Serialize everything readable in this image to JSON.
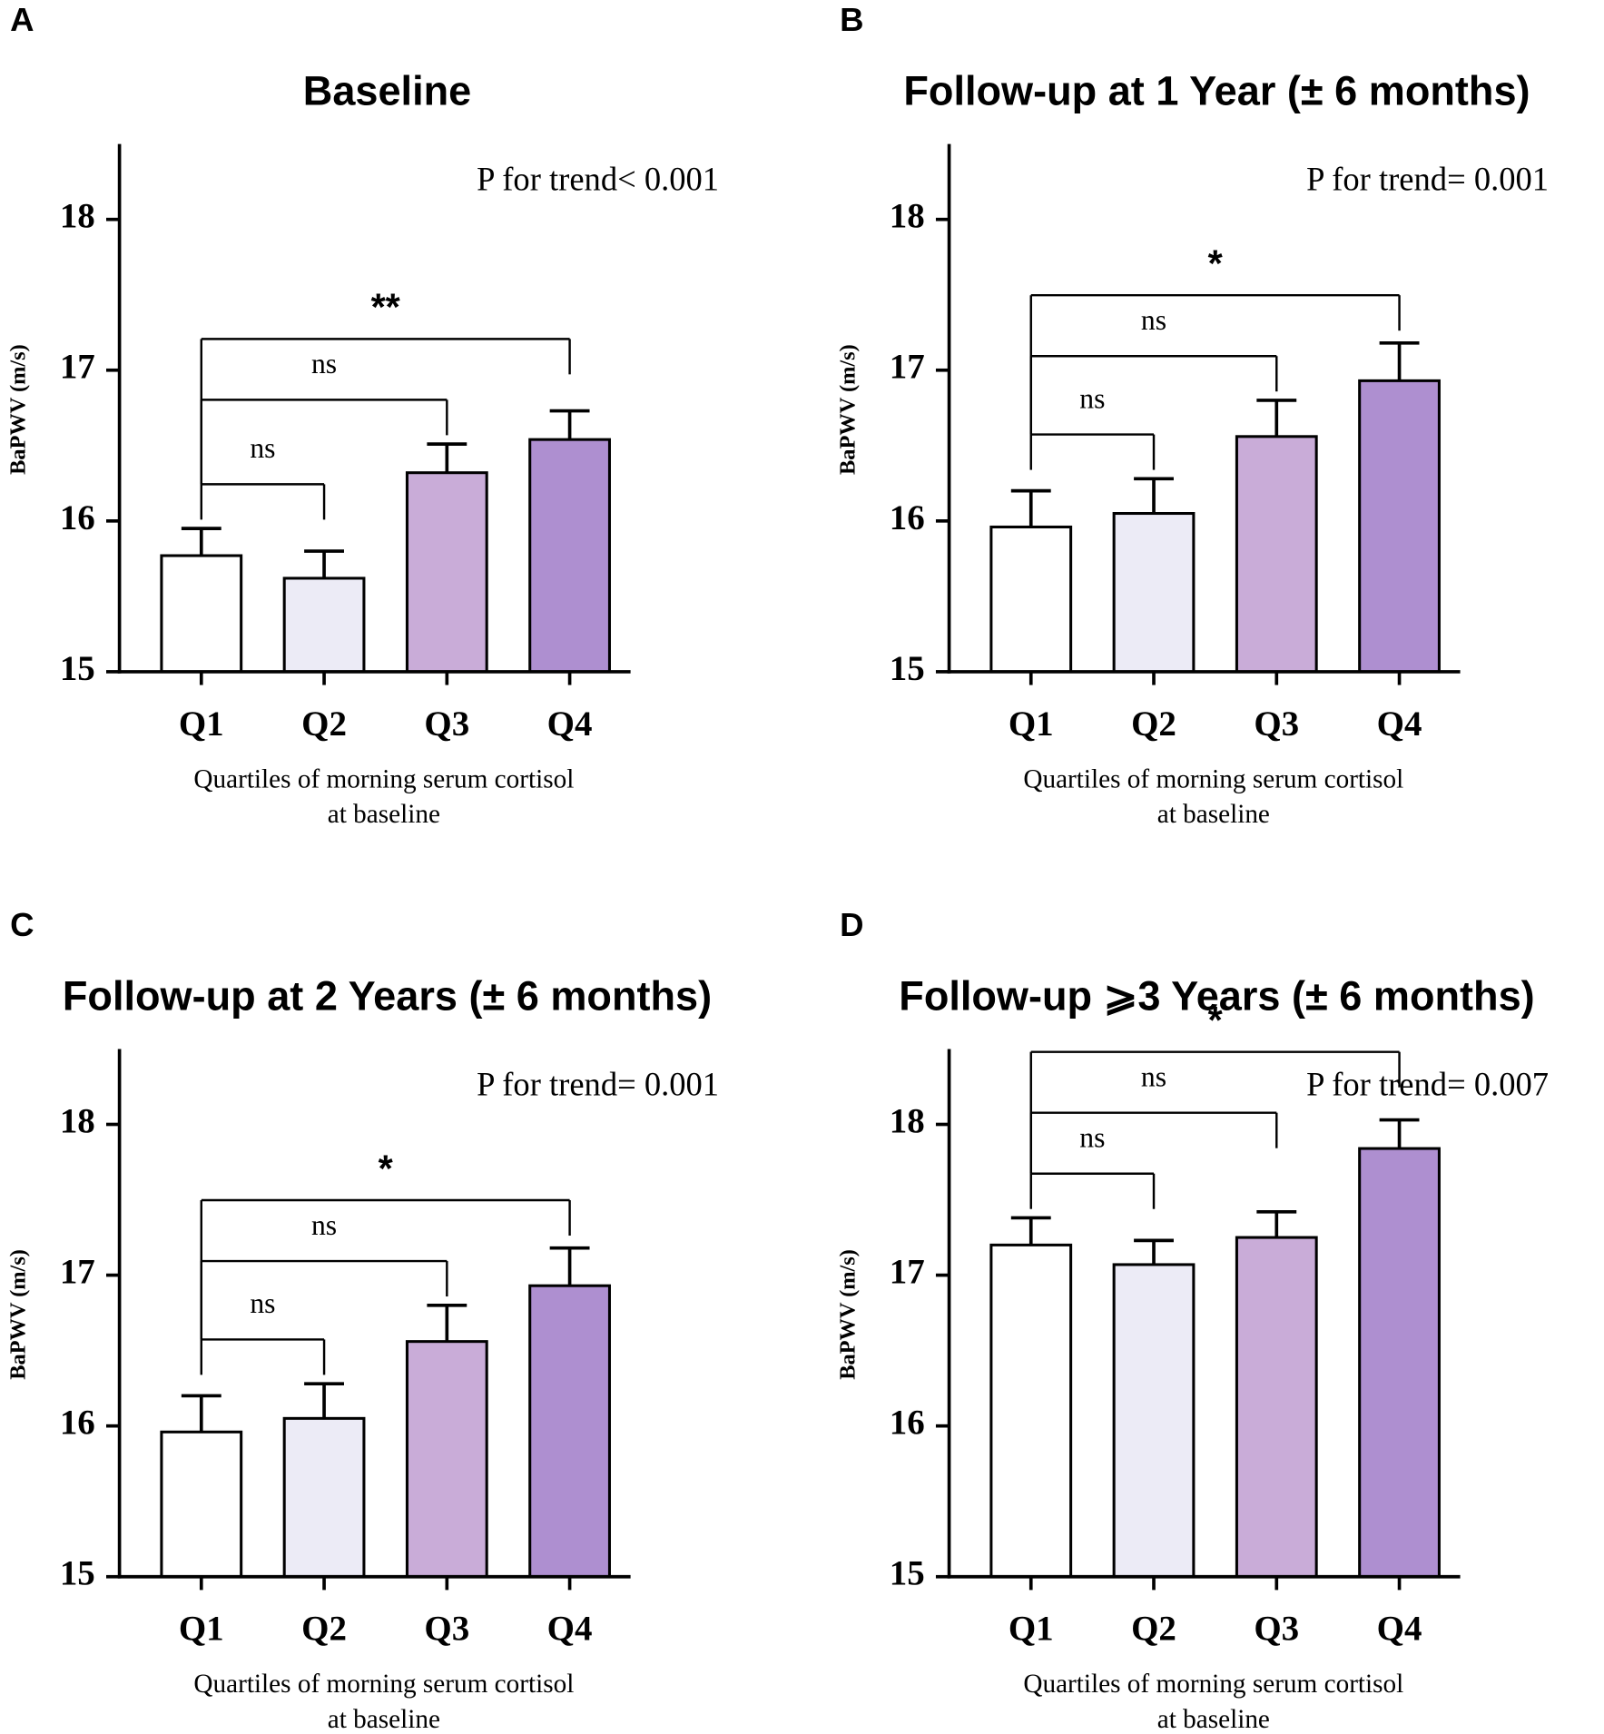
{
  "chart_data": [
    {
      "type": "bar",
      "panel_label": "A",
      "title": "Baseline",
      "annotation": "P for trend< 0.001",
      "y_label": "BaPWV (m/s)",
      "x_label": [
        "Quartiles of morning serum cortisol",
        "at baseline"
      ],
      "categories": [
        "Q1",
        "Q2",
        "Q3",
        "Q4"
      ],
      "values": [
        15.77,
        15.62,
        16.32,
        16.54
      ],
      "errors": [
        0.18,
        0.18,
        0.19,
        0.19
      ],
      "colors": [
        "#ffffff",
        "#ecebf6",
        "#c9acd8",
        "#ae8fd0"
      ],
      "ylim": [
        15,
        18.5
      ],
      "yticks": [
        15,
        16,
        17,
        18
      ],
      "comparisons": [
        {
          "from": 0,
          "to": 1,
          "label": "ns"
        },
        {
          "from": 0,
          "to": 2,
          "label": "ns"
        },
        {
          "from": 0,
          "to": 3,
          "label": "**"
        }
      ]
    },
    {
      "type": "bar",
      "panel_label": "B",
      "title": "Follow-up at 1 Year (± 6 months)",
      "annotation": "P for trend= 0.001",
      "y_label": "BaPWV (m/s)",
      "x_label": [
        "Quartiles of morning serum cortisol",
        "at baseline"
      ],
      "categories": [
        "Q1",
        "Q2",
        "Q3",
        "Q4"
      ],
      "values": [
        15.96,
        16.05,
        16.56,
        16.93
      ],
      "errors": [
        0.24,
        0.23,
        0.24,
        0.25
      ],
      "colors": [
        "#ffffff",
        "#ecebf6",
        "#c9acd8",
        "#ae8fd0"
      ],
      "ylim": [
        15,
        18.5
      ],
      "yticks": [
        15,
        16,
        17,
        18
      ],
      "comparisons": [
        {
          "from": 0,
          "to": 1,
          "label": "ns"
        },
        {
          "from": 0,
          "to": 2,
          "label": "ns"
        },
        {
          "from": 0,
          "to": 3,
          "label": "*"
        }
      ]
    },
    {
      "type": "bar",
      "panel_label": "C",
      "title": "Follow-up at 2 Years (± 6 months)",
      "annotation": "P for trend= 0.001",
      "y_label": "BaPWV (m/s)",
      "x_label": [
        "Quartiles of morning serum cortisol",
        "at baseline"
      ],
      "categories": [
        "Q1",
        "Q2",
        "Q3",
        "Q4"
      ],
      "values": [
        15.96,
        16.05,
        16.56,
        16.93
      ],
      "errors": [
        0.24,
        0.23,
        0.24,
        0.25
      ],
      "colors": [
        "#ffffff",
        "#ecebf6",
        "#c9acd8",
        "#ae8fd0"
      ],
      "ylim": [
        15,
        18.5
      ],
      "yticks": [
        15,
        16,
        17,
        18
      ],
      "comparisons": [
        {
          "from": 0,
          "to": 1,
          "label": "ns"
        },
        {
          "from": 0,
          "to": 2,
          "label": "ns"
        },
        {
          "from": 0,
          "to": 3,
          "label": "*"
        }
      ]
    },
    {
      "type": "bar",
      "panel_label": "D",
      "title": "Follow-up  ⩾3 Years (± 6 months)",
      "annotation": "P for trend= 0.007",
      "y_label": "BaPWV (m/s)",
      "x_label": [
        "Quartiles of morning serum cortisol",
        "at baseline"
      ],
      "categories": [
        "Q1",
        "Q2",
        "Q3",
        "Q4"
      ],
      "values": [
        17.2,
        17.07,
        17.25,
        17.84
      ],
      "errors": [
        0.18,
        0.16,
        0.17,
        0.19
      ],
      "colors": [
        "#ffffff",
        "#ecebf6",
        "#c9acd8",
        "#ae8fd0"
      ],
      "ylim": [
        15,
        18.5
      ],
      "yticks": [
        15,
        16,
        17,
        18
      ],
      "comparisons": [
        {
          "from": 0,
          "to": 1,
          "label": "ns"
        },
        {
          "from": 0,
          "to": 2,
          "label": "ns"
        },
        {
          "from": 0,
          "to": 3,
          "label": "*"
        }
      ]
    }
  ]
}
